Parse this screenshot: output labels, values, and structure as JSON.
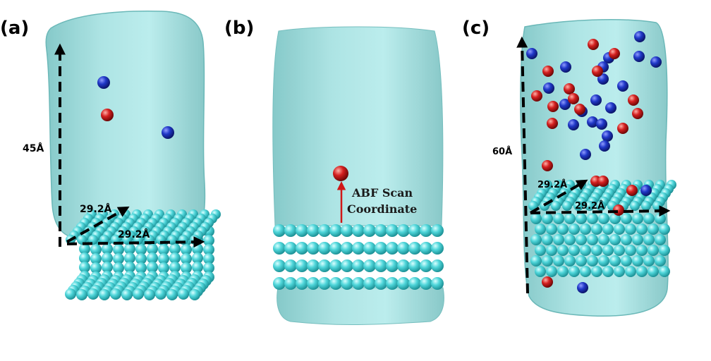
{
  "colors": {
    "water": "#8fd3d3",
    "water_edge": "#5fb3b3",
    "slab_atom": "#3ec8cc",
    "cation": "#1b2fb8",
    "anion": "#c2181a",
    "probe": "#d42020",
    "arrow": "#000000",
    "scan_arrow": "#d01818"
  },
  "panels": [
    {
      "label": "(a)",
      "dimensions": {
        "height": "45Å",
        "depth": "29.2Å",
        "width": "29.2Å"
      }
    },
    {
      "label": "(b)",
      "annotation_line1": "ABF Scan",
      "annotation_line2": "Coordinate"
    },
    {
      "label": "(c)",
      "dimensions": {
        "height": "60Å",
        "depth": "29.2Å",
        "width": "29.2Å"
      }
    }
  ]
}
